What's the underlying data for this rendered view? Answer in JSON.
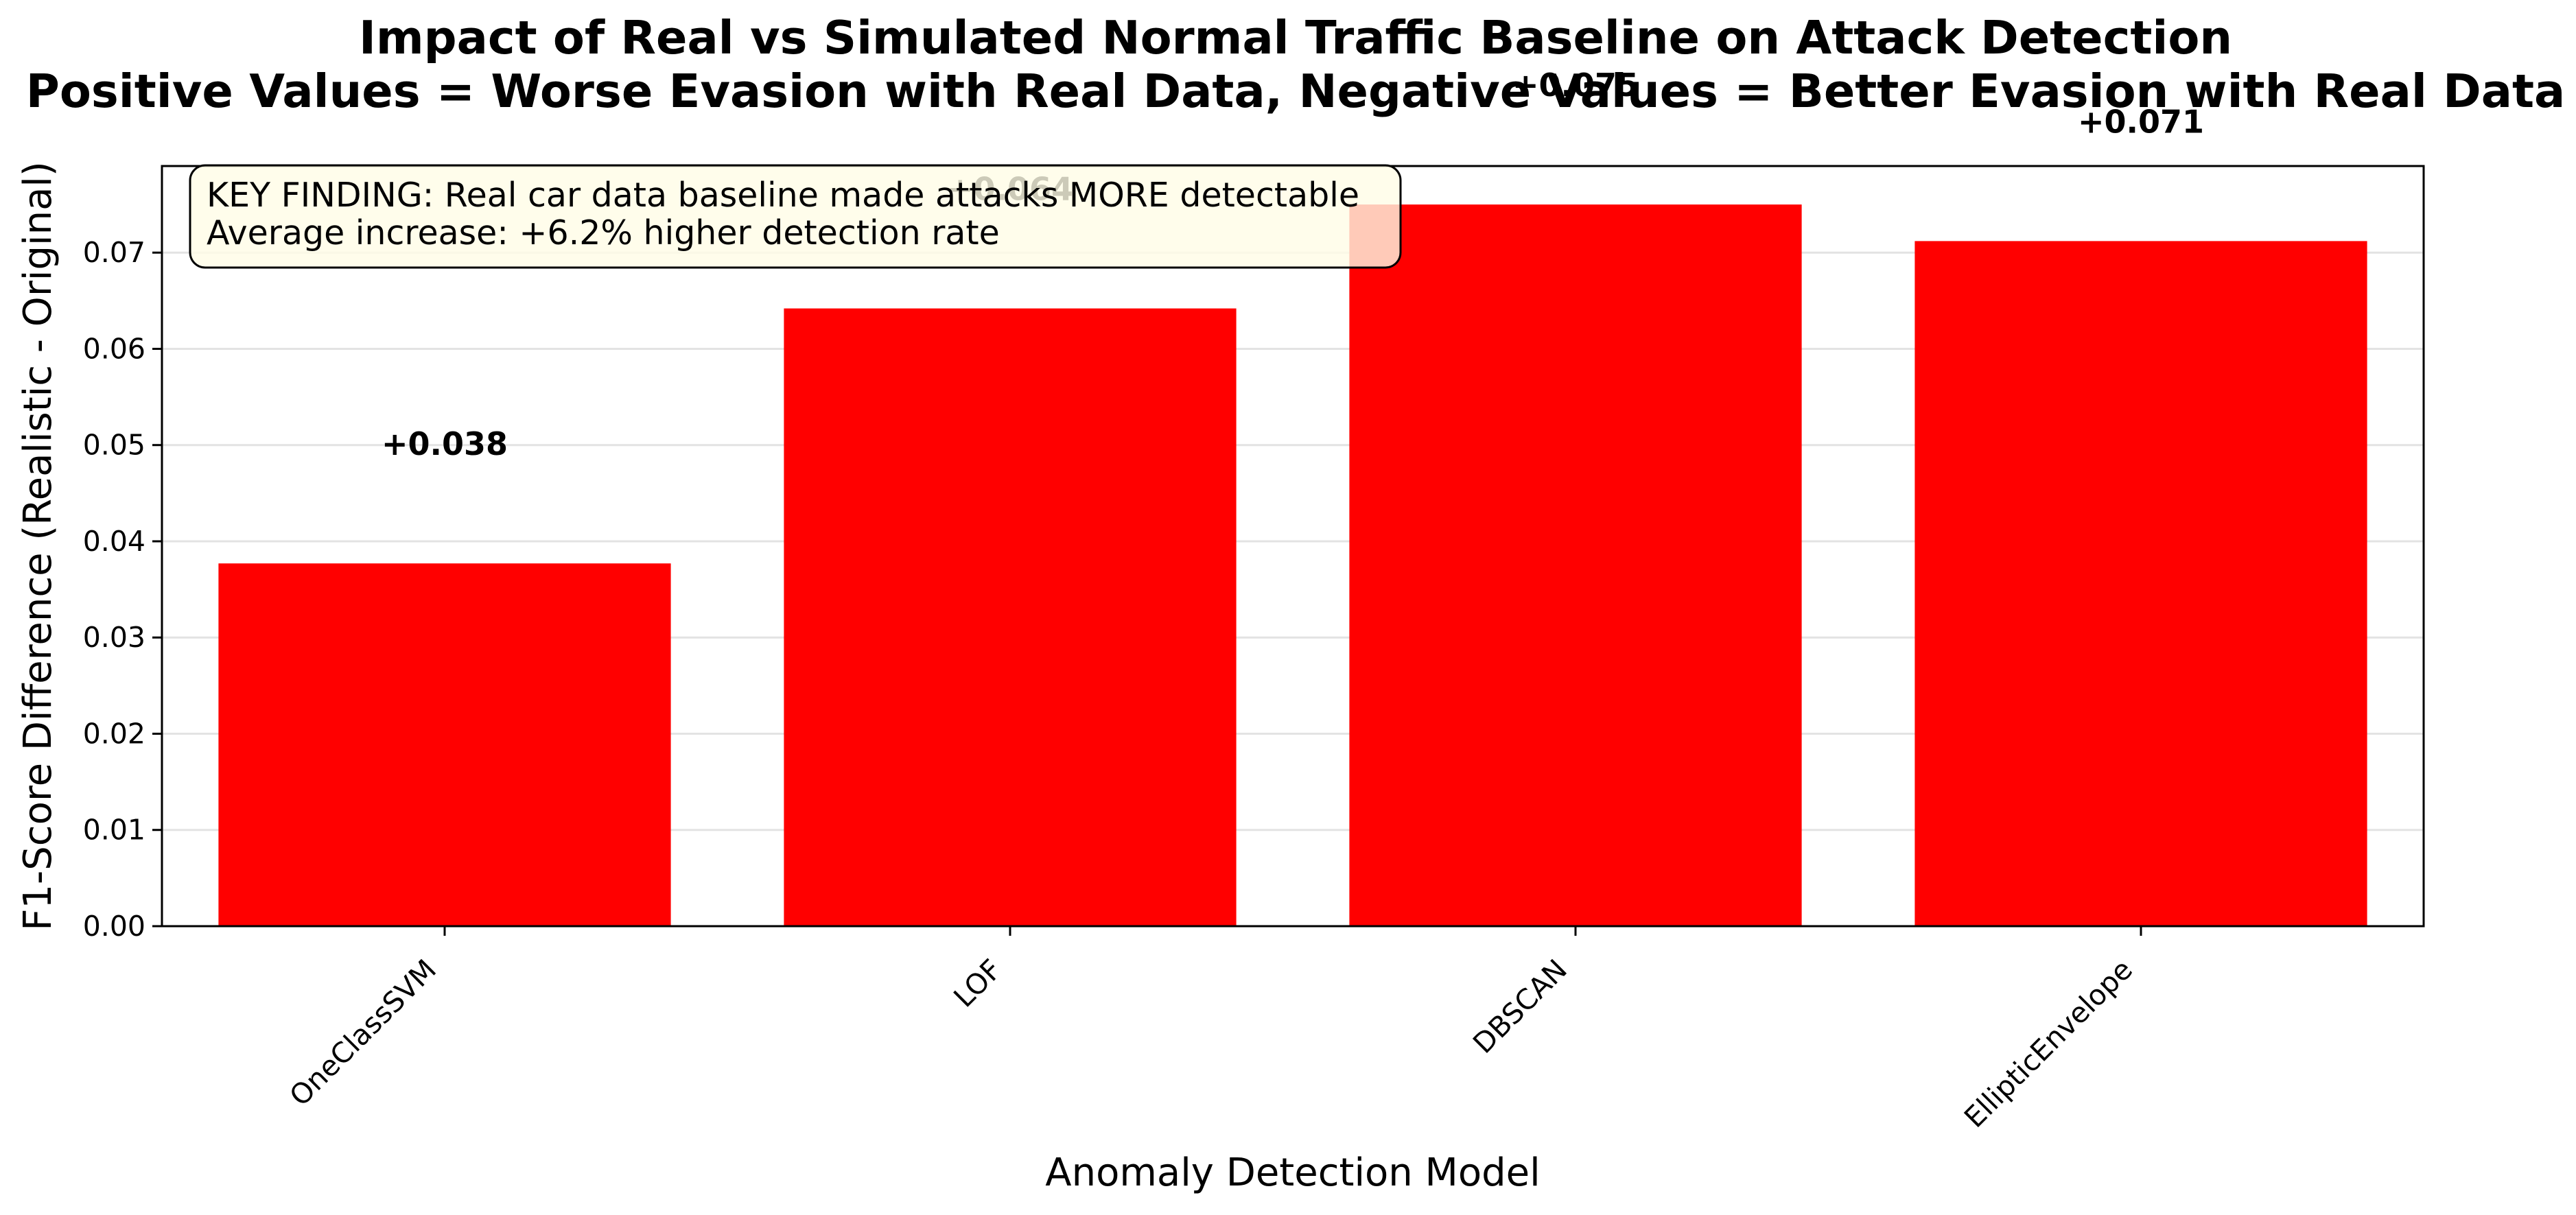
{
  "chart_data": {
    "type": "bar",
    "title": "Impact of Real vs Simulated Normal Traffic Baseline on Attack Detection",
    "subtitle": "Positive Values = Worse Evasion with Real Data, Negative Values = Better Evasion with Real Data",
    "xlabel": "Anomaly Detection Model",
    "ylabel": "F1-Score Difference (Realistic - Original)",
    "categories": [
      "OneClassSVM",
      "LOF",
      "DBSCAN",
      "EllipticEnvelope"
    ],
    "values": [
      0.0377,
      0.0642,
      0.075,
      0.0712
    ],
    "data_labels": [
      "+0.038",
      "+0.064",
      "+0.075",
      "+0.071"
    ],
    "ylim": [
      0,
      0.079
    ],
    "yticks": [
      0.0,
      0.01,
      0.02,
      0.03,
      0.04,
      0.05,
      0.06,
      0.07
    ],
    "ytick_labels": [
      "0.00",
      "0.01",
      "0.02",
      "0.03",
      "0.04",
      "0.05",
      "0.06",
      "0.07"
    ],
    "grid": "horizontal",
    "bar_color": "#ff0000",
    "annotation": {
      "line1": "KEY FINDING: Real car data baseline made attacks MORE detectable",
      "line2": "Average increase: +6.2% higher detection rate",
      "placement": "top-left",
      "background": "#fffde6"
    }
  }
}
